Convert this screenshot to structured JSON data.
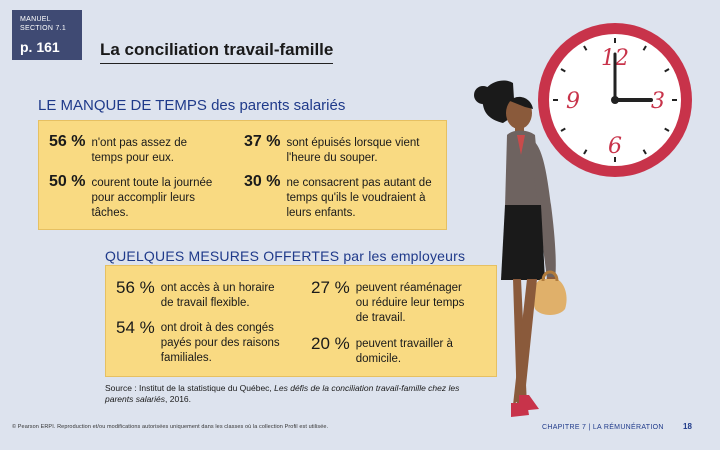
{
  "badge": {
    "kicker": "MANUEL SECTION 7.1",
    "page": "p. 161"
  },
  "title": "La conciliation travail-famille",
  "clock_numerals": [
    "12",
    "3",
    "6",
    "9"
  ],
  "section1": {
    "heading": "LE MANQUE DE TEMPS des parents salariés",
    "stats": [
      {
        "pct": "56 %",
        "text": "n'ont pas assez de temps pour eux."
      },
      {
        "pct": "37 %",
        "text": "sont épuisés lorsque vient l'heure du souper."
      },
      {
        "pct": "50 %",
        "text": "courent toute la journée pour accomplir leurs tâches."
      },
      {
        "pct": "30 %",
        "text": "ne consacrent pas autant de temps qu'ils le voudraient à leurs enfants."
      }
    ]
  },
  "section2": {
    "heading": "QUELQUES MESURES OFFERTES par les employeurs",
    "stats": [
      {
        "pct": "56 %",
        "text": "ont accès à un horaire de travail flexible."
      },
      {
        "pct": "27 %",
        "text": "peuvent réaménager ou réduire leur temps de travail."
      },
      {
        "pct": "54 %",
        "text": "ont droit à des congés payés pour des raisons familiales."
      },
      {
        "pct": "20 %",
        "text": "peuvent travailler à domicile."
      }
    ]
  },
  "source": {
    "prefix": "Source : Institut de la statistique du Québec, ",
    "italic": "Les défis de la conciliation travail-famille chez les parents salariés",
    "suffix": ", 2016."
  },
  "footer": {
    "left": "© Pearson ERPI. Reproduction et/ou modifications autorisées uniquement dans les classes où la collection Profil est utilisée.",
    "right": "CHAPITRE 7 | LA RÉMUNÉRATION",
    "page_number": "18"
  },
  "colors": {
    "background": "#dde3ee",
    "badge": "#3f4a73",
    "box": "#f9da82",
    "heading": "#1f3a8a",
    "clock_face": "#c8334a"
  }
}
